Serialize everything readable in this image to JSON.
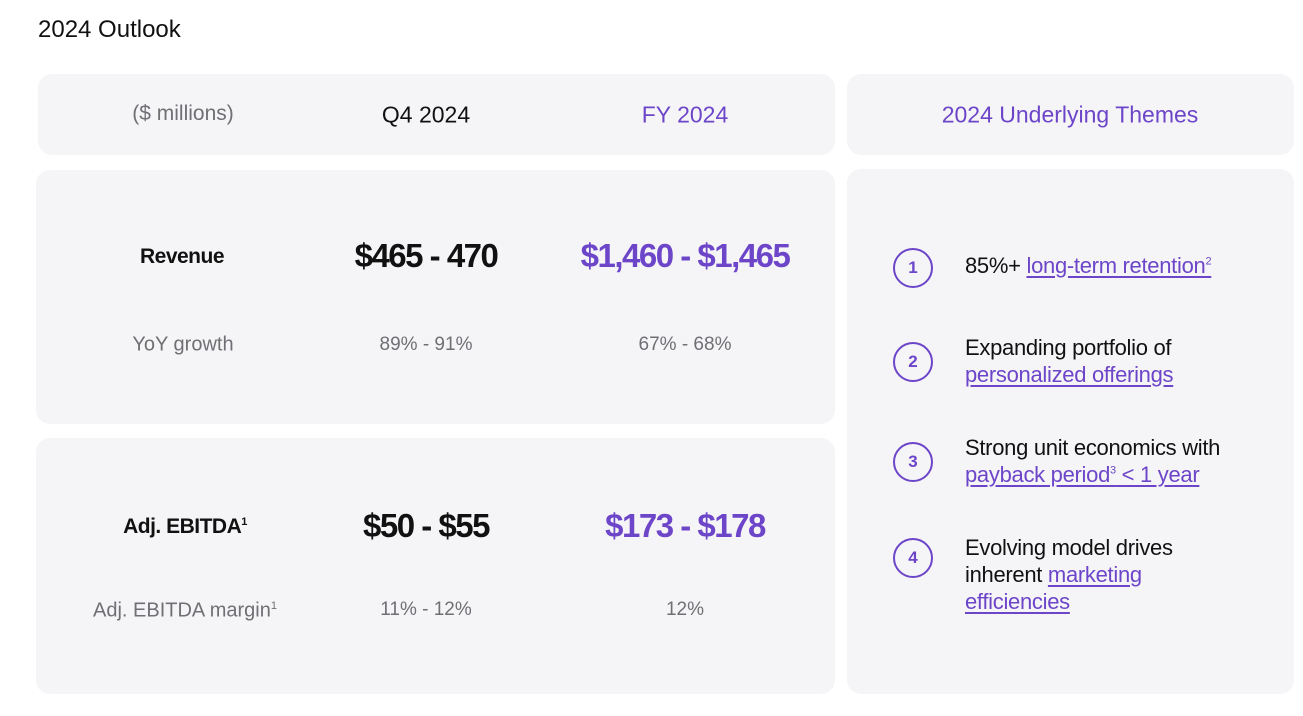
{
  "title": "2024 Outlook",
  "table": {
    "units_label": "($ millions)",
    "col_q4": "Q4 2024",
    "col_fy": "FY 2024",
    "revenue": {
      "label": "Revenue",
      "q4": "$465 - 470",
      "fy": "$1,460 - $1,465",
      "growth_label": "YoY growth",
      "growth_q4": "89% - 91%",
      "growth_fy": "67% - 68%"
    },
    "ebitda": {
      "label": "Adj. EBITDA",
      "label_sup": "1",
      "q4": "$50 - $55",
      "fy": "$173 - $178",
      "margin_label": "Adj. EBITDA margin",
      "margin_sup": "1",
      "margin_q4": "11% - 12%",
      "margin_fy": "12%"
    }
  },
  "themes": {
    "heading": "2024 Underlying Themes",
    "items": [
      {
        "number": "1",
        "text_before": "85%+ ",
        "link": "long-term retention",
        "link_sup": "2"
      },
      {
        "number": "2",
        "line1": "Expanding portfolio of",
        "link": "personalized offerings"
      },
      {
        "number": "3",
        "line1": "Strong unit economics with",
        "link_a": "payback period",
        "link_sup": "3",
        "link_b": " < 1 year"
      },
      {
        "number": "4",
        "line1": "Evolving model drives",
        "line2_text": "inherent ",
        "link_a": "marketing",
        "link_b": "efficiencies"
      }
    ]
  },
  "colors": {
    "accent": "#6c45c9",
    "card_bg": "#f5f5f7",
    "muted_text": "#6f6f74"
  }
}
